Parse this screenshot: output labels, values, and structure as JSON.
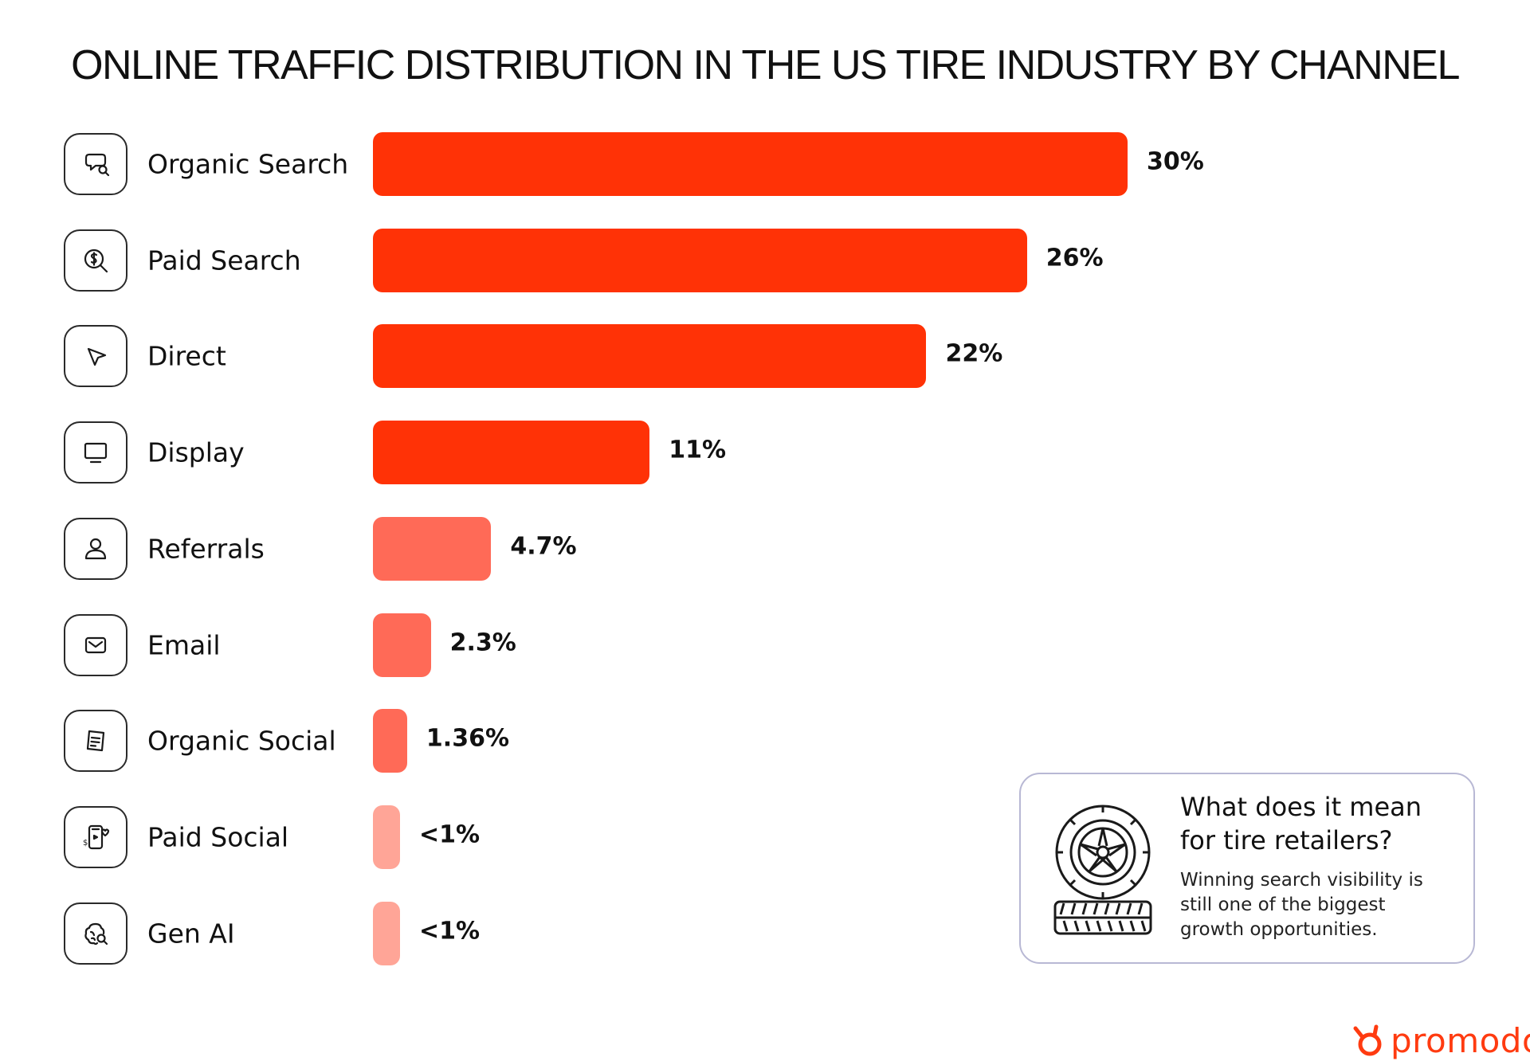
{
  "chart_data": {
    "type": "bar",
    "orientation": "horizontal",
    "title": "ONLINE TRAFFIC DISTRIBUTION IN THE US TIRE INDUSTRY BY CHANNEL",
    "xlabel": "",
    "ylabel": "",
    "grid": false,
    "categories": [
      "Organic Search",
      "Paid Search",
      "Direct",
      "Display",
      "Referrals",
      "Email",
      "Organic Social",
      "Paid Social",
      "Gen AI"
    ],
    "values": [
      30,
      26,
      22,
      11,
      4.7,
      2.3,
      1.36,
      0.9,
      0.9
    ],
    "value_labels": [
      "30%",
      "26%",
      "22%",
      "11%",
      "4.7%",
      "2.3%",
      "1.36%",
      "<1%",
      "<1%"
    ],
    "icons": [
      "search-chat-icon",
      "paid-search-icon",
      "cursor-pointer-icon",
      "monitor-icon",
      "user-icon",
      "envelope-icon",
      "document-icon",
      "phone-social-icon",
      "brain-search-icon"
    ],
    "bar_colors": [
      "#ff3206",
      "#ff3206",
      "#ff3206",
      "#ff3206",
      "#ff6a57",
      "#ff6a57",
      "#ff6a57",
      "#ffa597",
      "#ffa597"
    ],
    "xlim": [
      0,
      30
    ]
  },
  "callout": {
    "heading": "What does it mean for tire retailers?",
    "body": "Winning search visibility is still one of the biggest growth opportunities.",
    "icon": "tire-icon"
  },
  "brand": {
    "name": "promodo",
    "icon": "promodo-logo-icon",
    "color": "#ff3b10"
  }
}
